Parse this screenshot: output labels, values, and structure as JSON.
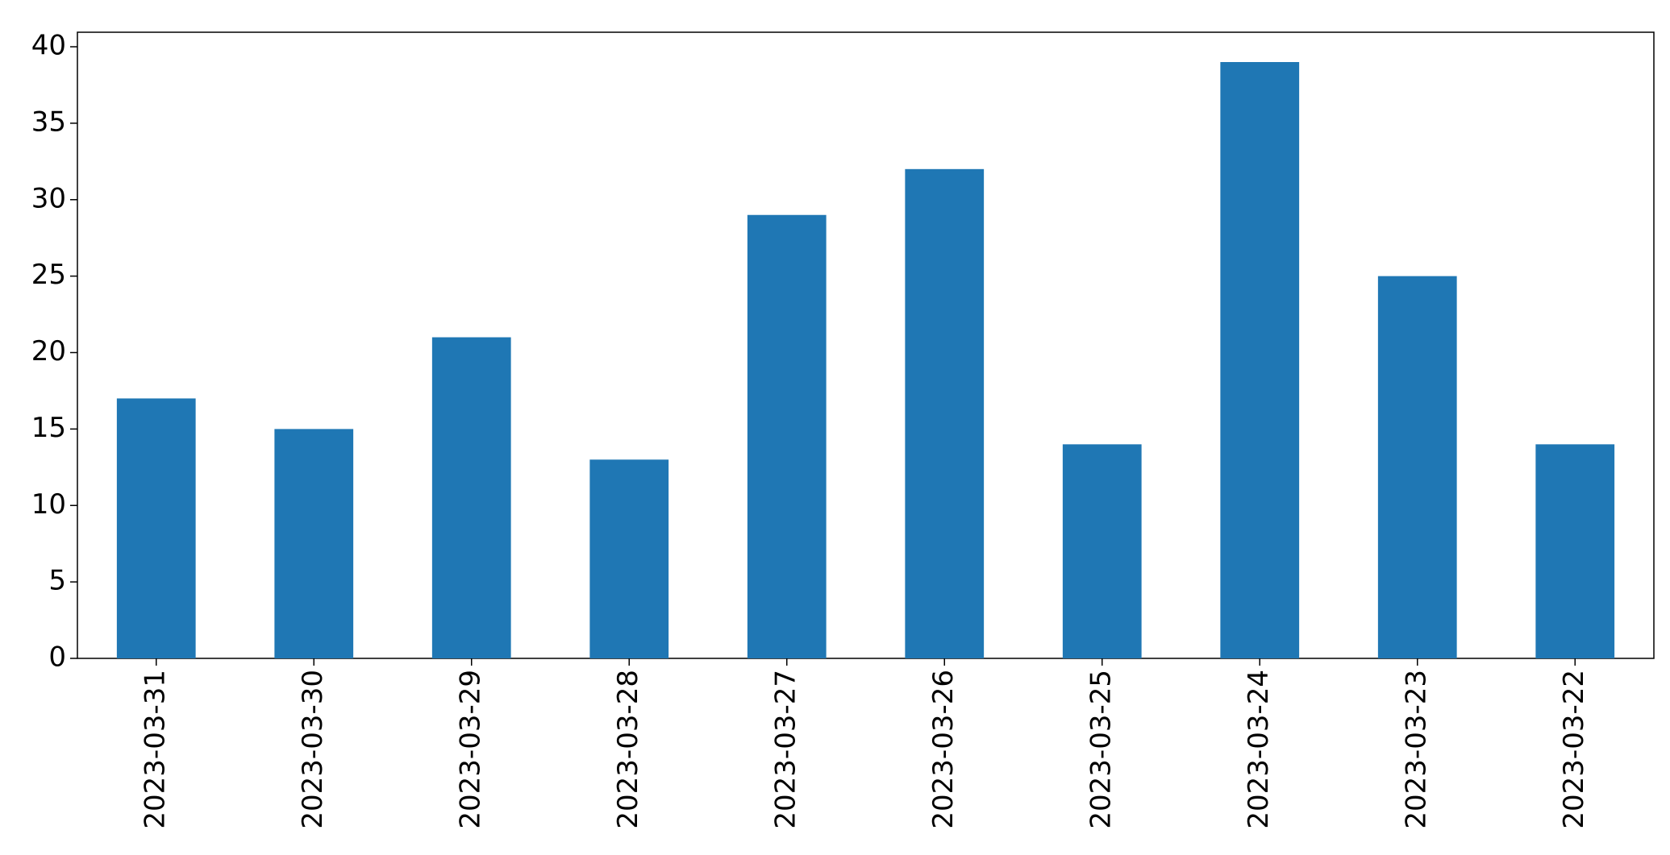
{
  "chart_data": {
    "type": "bar",
    "categories": [
      "2023-03-31",
      "2023-03-30",
      "2023-03-29",
      "2023-03-28",
      "2023-03-27",
      "2023-03-26",
      "2023-03-25",
      "2023-03-24",
      "2023-03-23",
      "2023-03-22"
    ],
    "values": [
      17,
      15,
      21,
      13,
      29,
      32,
      14,
      39,
      25,
      14
    ],
    "color": "#1f77b4",
    "ylim": [
      0,
      40.95
    ],
    "yticks": [
      0,
      5,
      10,
      15,
      20,
      25,
      30,
      35,
      40
    ],
    "grid": false
  }
}
